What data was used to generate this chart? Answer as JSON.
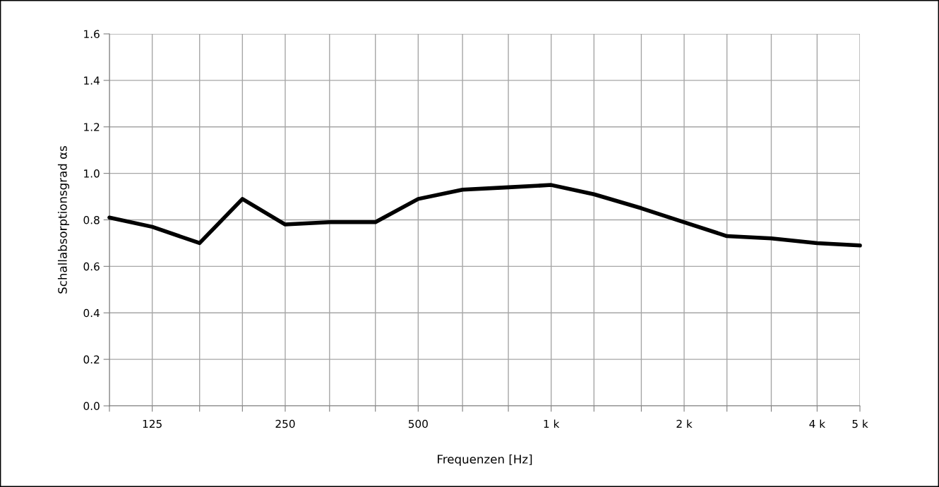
{
  "chart_data": {
    "type": "line",
    "xlabel": "Frequenzen [Hz]",
    "ylabel": "Schallabsorptionsgrad αs",
    "x": [
      100,
      125,
      160,
      200,
      250,
      315,
      400,
      500,
      630,
      800,
      1000,
      1250,
      1600,
      2000,
      2500,
      3150,
      4000,
      5000
    ],
    "series": [
      {
        "color": "#000000",
        "values": [
          0.81,
          0.77,
          0.7,
          0.89,
          0.78,
          0.79,
          0.79,
          0.89,
          0.93,
          0.94,
          0.95,
          0.91,
          0.85,
          0.79,
          0.73,
          0.72,
          0.7,
          0.69
        ]
      }
    ],
    "log": "x",
    "xlim": [
      100,
      5000
    ],
    "xticks": [
      {
        "value": 100,
        "label": null
      },
      {
        "value": 125,
        "label": "125"
      },
      {
        "value": 160,
        "label": null
      },
      {
        "value": 200,
        "label": null
      },
      {
        "value": 250,
        "label": "250"
      },
      {
        "value": 315,
        "label": null
      },
      {
        "value": 400,
        "label": null
      },
      {
        "value": 500,
        "label": "500"
      },
      {
        "value": 630,
        "label": null
      },
      {
        "value": 800,
        "label": null
      },
      {
        "value": 1000,
        "label": "1 k"
      },
      {
        "value": 1250,
        "label": null
      },
      {
        "value": 1600,
        "label": null
      },
      {
        "value": 2000,
        "label": "2 k"
      },
      {
        "value": 2500,
        "label": null
      },
      {
        "value": 3150,
        "label": null
      },
      {
        "value": 4000,
        "label": "4 k"
      },
      {
        "value": 5000,
        "label": "5 k"
      }
    ],
    "ylim": [
      0,
      1.6
    ],
    "yticks": [
      {
        "value": 0,
        "label": "0.0"
      },
      {
        "value": 0.2,
        "label": "0.2"
      },
      {
        "value": 0.4,
        "label": "0.4"
      },
      {
        "value": 0.6,
        "label": "0.6"
      },
      {
        "value": 0.8,
        "label": "0.8"
      },
      {
        "value": 1.0,
        "label": "1.0"
      },
      {
        "value": 1.2,
        "label": "1.2"
      },
      {
        "value": 1.4,
        "label": "1.4"
      },
      {
        "value": 1.6,
        "label": "1.6"
      }
    ],
    "grid": true,
    "marker": "none",
    "line_style": "solid"
  }
}
